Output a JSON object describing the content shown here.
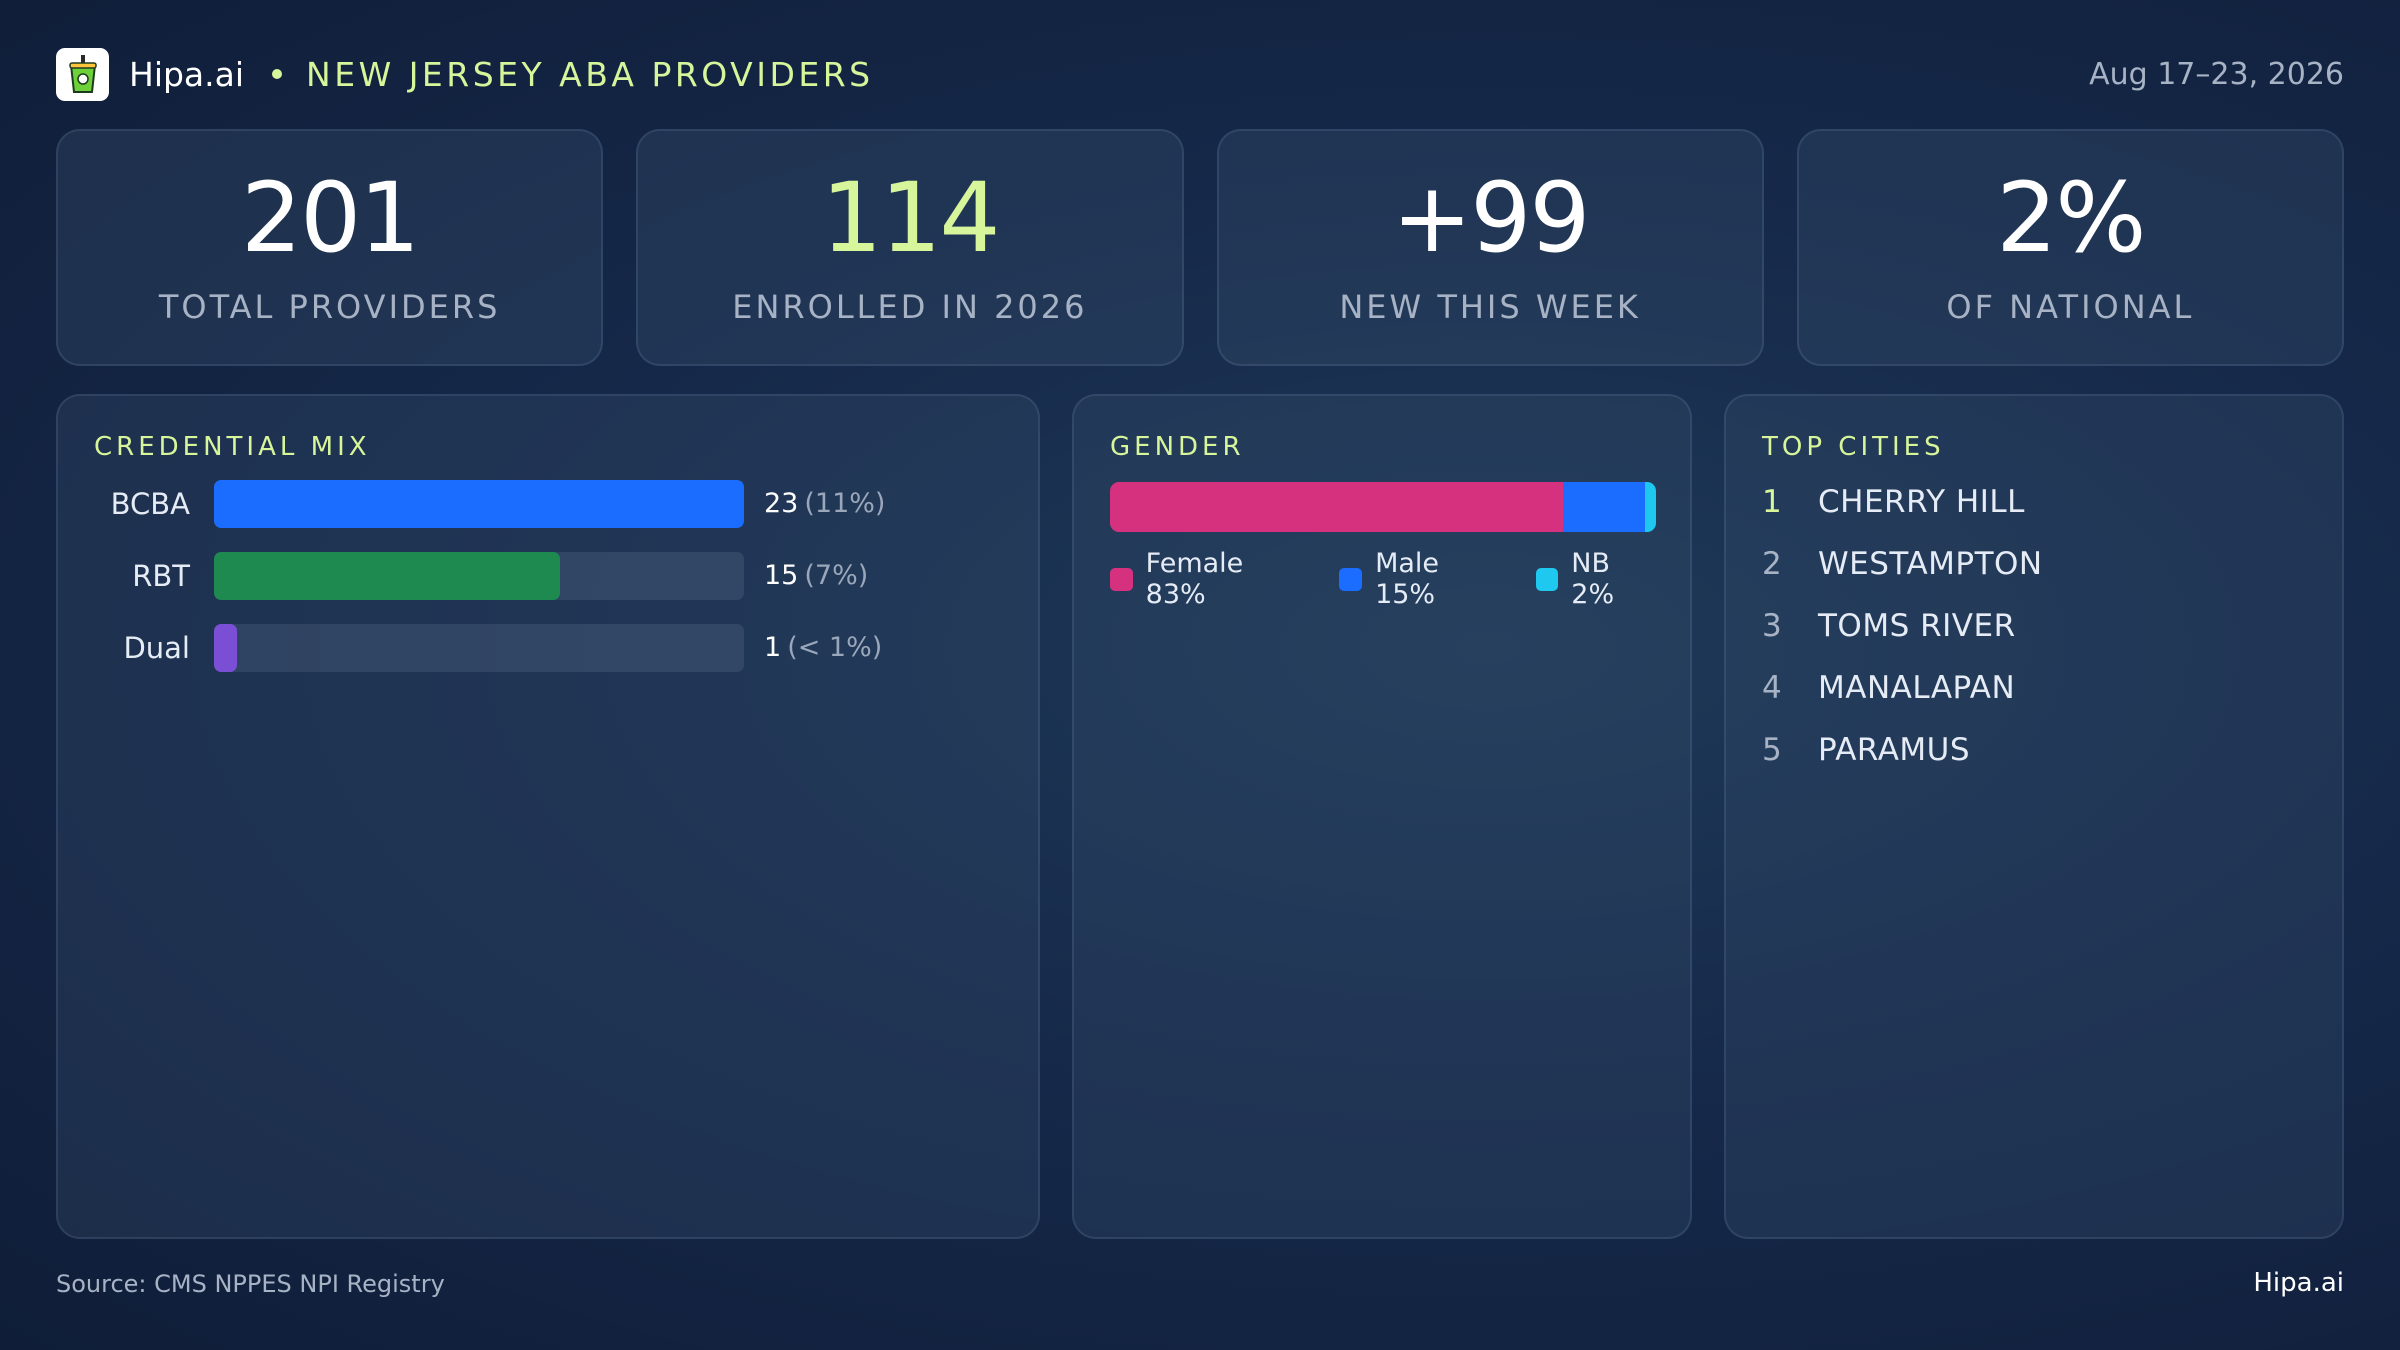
{
  "header": {
    "brand": "Hipa.ai",
    "title": "NEW JERSEY ABA PROVIDERS",
    "date": "Aug 17–23, 2026",
    "logo_icon": "cup-icon"
  },
  "kpis": [
    {
      "value": "201",
      "label": "TOTAL PROVIDERS"
    },
    {
      "value": "114",
      "label": "ENROLLED IN 2026"
    },
    {
      "value": "+99",
      "label": "NEW THIS WEEK"
    },
    {
      "value": "2%",
      "label": "OF NATIONAL"
    }
  ],
  "panels": {
    "credential_title": "CREDENTIAL MIX",
    "gender_title": "GENDER",
    "cities_title": "TOP CITIES"
  },
  "cities": [
    {
      "rank": "1",
      "name": "CHERRY HILL"
    },
    {
      "rank": "2",
      "name": "WESTAMPTON"
    },
    {
      "rank": "3",
      "name": "TOMS RIVER"
    },
    {
      "rank": "4",
      "name": "MANALAPAN"
    },
    {
      "rank": "5",
      "name": "PARAMUS"
    }
  ],
  "footer": {
    "source": "Source: CMS NPPES NPI Registry",
    "brand": "Hipa.ai"
  },
  "colors": {
    "accent": "#d7f59a",
    "bcba": "#1a6dff",
    "rbt": "#1e8a50",
    "dual": "#7a4fd6",
    "female": "#d6317f",
    "male": "#1a6dff",
    "nb": "#1ec8ee"
  },
  "chart_data": [
    {
      "type": "bar",
      "title": "CREDENTIAL MIX",
      "orientation": "horizontal",
      "categories": [
        "BCBA",
        "RBT",
        "Dual"
      ],
      "values": [
        23,
        15,
        1
      ],
      "value_labels": [
        "23",
        "15",
        "1"
      ],
      "percent_labels": [
        "(11%)",
        "(7%)",
        "(< 1%)"
      ],
      "xlim": [
        0,
        23
      ]
    },
    {
      "type": "bar",
      "title": "GENDER",
      "orientation": "horizontal-stacked",
      "series": [
        {
          "name": "Female",
          "value": 83,
          "label": "Female 83%"
        },
        {
          "name": "Male",
          "value": 15,
          "label": "Male 15%"
        },
        {
          "name": "NB",
          "value": 2,
          "label": "NB 2%"
        }
      ],
      "legend": "bottom"
    }
  ]
}
